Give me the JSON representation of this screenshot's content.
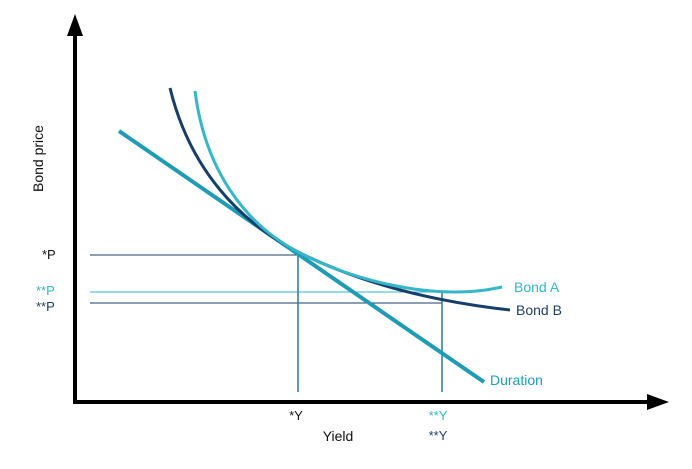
{
  "colors": {
    "axis": "#000000",
    "bond_a": "#35b6c9",
    "bond_b": "#173e6b",
    "duration": "#1f9bb5",
    "text_dark": "#1e3f66",
    "text_black": "#111111"
  },
  "labels": {
    "y_axis": "Bond price",
    "x_axis": "Yield",
    "bond_a": "Bond A",
    "bond_b": "Bond B",
    "duration": "Duration",
    "p_star": "*P",
    "p_star_star_a": "**P",
    "p_star_star_b": "**P",
    "y_star": "*Y",
    "y_star_star_a": "**Y",
    "y_star_star_b": "**Y"
  }
}
